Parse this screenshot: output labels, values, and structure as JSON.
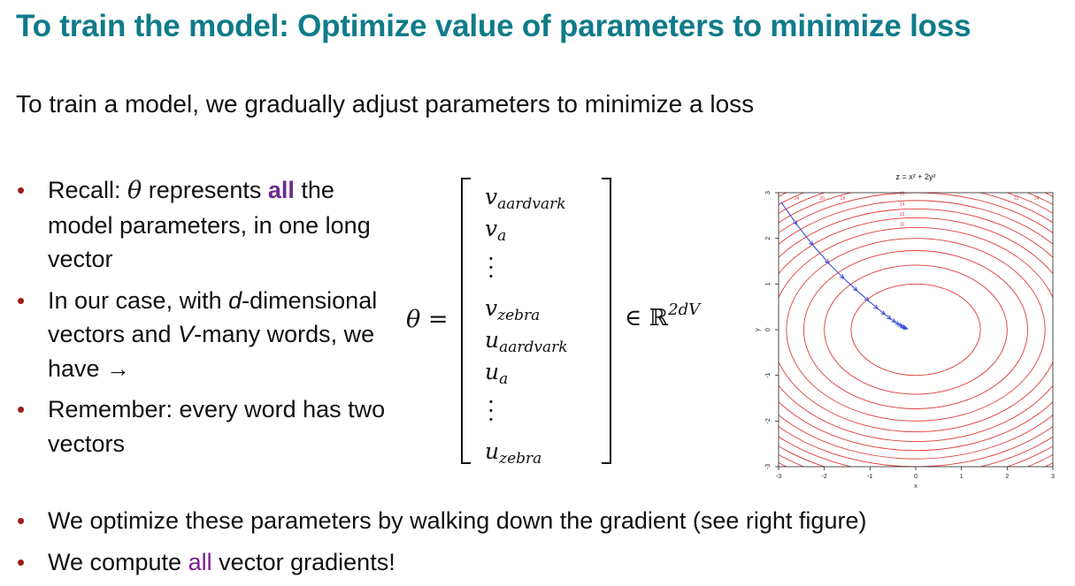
{
  "title": "To train the model: Optimize value of parameters to minimize loss",
  "subtitle": "To train a model, we gradually adjust parameters to minimize a loss",
  "bullets_left": [
    {
      "pre": "Recall: ",
      "theta": "θ",
      "mid": " represents ",
      "highlight": "all",
      "post": " the model parameters, in one long vector"
    },
    {
      "pre": "In our case, with ",
      "d": "d",
      "mid": "-dimensional vectors and ",
      "V": "V",
      "post": "-many words, we have →"
    },
    {
      "text": "Remember: every word has two vectors"
    }
  ],
  "equation": {
    "lhs": "θ =",
    "entries": [
      {
        "base": "v",
        "sub": "aardvark"
      },
      {
        "base": "v",
        "sub": "a"
      },
      {
        "dots": "⋮"
      },
      {
        "base": "v",
        "sub": "zebra"
      },
      {
        "base": "u",
        "sub": "aardvark"
      },
      {
        "base": "u",
        "sub": "a"
      },
      {
        "dots": "⋮"
      },
      {
        "base": "u",
        "sub": "zebra"
      }
    ],
    "rhs_symbol": "∈ ℝ",
    "rhs_exponent": "2dV"
  },
  "chart_data": {
    "type": "contour",
    "title": "z = x² + 2y²",
    "xlabel": "x",
    "ylabel": "y",
    "xlim": [
      -3,
      3
    ],
    "ylim": [
      -3,
      3
    ],
    "x_ticks": [
      "-3",
      "-2",
      "-1",
      "0",
      "1",
      "2",
      "3"
    ],
    "y_ticks": [
      "-3",
      "-2",
      "-1",
      "0",
      "1",
      "2",
      "3"
    ],
    "contour_levels": [
      2,
      4,
      6,
      8,
      10,
      12,
      14,
      16,
      18,
      20,
      22,
      24,
      26
    ],
    "contour_color": "#e03a3a",
    "contour_labels": [
      "24",
      "20",
      "18",
      "16",
      "14",
      "12",
      "10",
      "22",
      "24"
    ],
    "gradient_path_color": "#3a4fd8",
    "gradient_path": [
      [
        -2.95,
        2.8
      ],
      [
        -2.6,
        2.3
      ],
      [
        -2.25,
        1.85
      ],
      [
        -1.9,
        1.45
      ],
      [
        -1.57,
        1.12
      ],
      [
        -1.28,
        0.85
      ],
      [
        -1.03,
        0.63
      ],
      [
        -0.83,
        0.46
      ],
      [
        -0.67,
        0.33
      ],
      [
        -0.54,
        0.23
      ],
      [
        -0.44,
        0.16
      ],
      [
        -0.36,
        0.11
      ],
      [
        -0.3,
        0.07
      ],
      [
        -0.25,
        0.05
      ],
      [
        -0.21,
        0.03
      ],
      [
        -0.18,
        0.02
      ]
    ]
  },
  "bullets_bottom": [
    {
      "text": "We optimize these parameters by walking down the gradient (see right figure)"
    },
    {
      "pre": "We compute ",
      "highlight": "all",
      "post": " vector gradients!"
    }
  ],
  "colors": {
    "title": "#0f7b8a",
    "bullet": "#a01c1c",
    "highlight": "#7a1f8f"
  }
}
